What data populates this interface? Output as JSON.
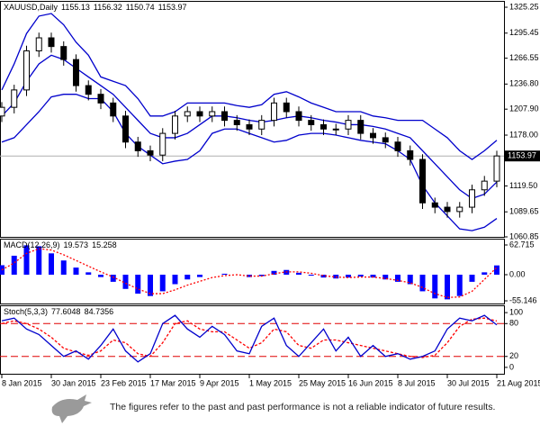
{
  "chart_data": [
    {
      "type": "candlestick",
      "title": "XAUUSD,Daily",
      "last_bar": [
        1155.13,
        1156.32,
        1150.74,
        1153.97
      ],
      "open": [
        1200,
        1210,
        1230,
        1275,
        1290,
        1280,
        1265,
        1235,
        1225,
        1215,
        1200,
        1170,
        1160,
        1155,
        1180,
        1200,
        1205,
        1200,
        1205,
        1195,
        1190,
        1185,
        1195,
        1215,
        1205,
        1195,
        1190,
        1185,
        1185,
        1195,
        1180,
        1175,
        1170,
        1160,
        1150,
        1100,
        1095,
        1090,
        1095,
        1115,
        1125
      ],
      "high": [
        1216,
        1236,
        1281,
        1296,
        1296,
        1286,
        1271,
        1241,
        1231,
        1221,
        1206,
        1176,
        1166,
        1186,
        1206,
        1211,
        1211,
        1211,
        1211,
        1201,
        1196,
        1201,
        1221,
        1221,
        1211,
        1201,
        1196,
        1191,
        1201,
        1201,
        1186,
        1181,
        1176,
        1166,
        1156,
        1106,
        1101,
        1101,
        1121,
        1131,
        1160
      ],
      "low": [
        1193,
        1203,
        1223,
        1268,
        1273,
        1258,
        1228,
        1218,
        1208,
        1193,
        1163,
        1153,
        1148,
        1148,
        1173,
        1193,
        1193,
        1193,
        1188,
        1183,
        1178,
        1178,
        1188,
        1198,
        1188,
        1183,
        1178,
        1178,
        1178,
        1173,
        1168,
        1163,
        1153,
        1143,
        1093,
        1088,
        1083,
        1083,
        1088,
        1108,
        1118
      ],
      "close": [
        1210,
        1230,
        1275,
        1290,
        1280,
        1265,
        1235,
        1225,
        1215,
        1200,
        1170,
        1160,
        1155,
        1180,
        1200,
        1205,
        1200,
        1205,
        1195,
        1190,
        1185,
        1195,
        1215,
        1205,
        1195,
        1190,
        1185,
        1185,
        1195,
        1180,
        1175,
        1170,
        1160,
        1150,
        1100,
        1095,
        1090,
        1095,
        1115,
        1125,
        1154
      ],
      "upper": [
        1230,
        1260,
        1295,
        1315,
        1318,
        1305,
        1285,
        1270,
        1245,
        1240,
        1235,
        1220,
        1200,
        1200,
        1205,
        1215,
        1215,
        1215,
        1215,
        1212,
        1210,
        1213,
        1225,
        1228,
        1222,
        1215,
        1210,
        1205,
        1205,
        1205,
        1200,
        1198,
        1195,
        1195,
        1195,
        1185,
        1175,
        1160,
        1150,
        1160,
        1172
      ],
      "middle": [
        1200,
        1215,
        1240,
        1260,
        1270,
        1265,
        1255,
        1245,
        1235,
        1225,
        1210,
        1195,
        1180,
        1175,
        1175,
        1180,
        1190,
        1200,
        1200,
        1198,
        1195,
        1193,
        1195,
        1198,
        1200,
        1198,
        1195,
        1193,
        1190,
        1190,
        1188,
        1185,
        1180,
        1175,
        1160,
        1145,
        1130,
        1115,
        1105,
        1110,
        1124
      ],
      "lower": [
        1170,
        1175,
        1190,
        1205,
        1222,
        1225,
        1225,
        1220,
        1220,
        1205,
        1180,
        1165,
        1155,
        1145,
        1148,
        1150,
        1160,
        1180,
        1185,
        1185,
        1180,
        1175,
        1170,
        1172,
        1178,
        1180,
        1180,
        1178,
        1175,
        1172,
        1170,
        1168,
        1160,
        1150,
        1120,
        1100,
        1085,
        1070,
        1068,
        1072,
        1082
      ],
      "band_color": "#0000cc",
      "ylim": [
        1059.8,
        1331.5
      ],
      "yticks": [
        1325.25,
        1295.45,
        1266.55,
        {
          "value": 1236.8,
          "label": "1236.80"
        },
        {
          "value": 1207.9,
          "label": "1207.90"
        },
        {
          "value": 1178,
          "label": "1178.00"
        },
        {
          "value": 1119.5,
          "label": "1119.50"
        },
        1089.65,
        1060.85
      ]
    },
    {
      "type": "macd",
      "title": "MACD(12,26,9)",
      "histogram": [
        20,
        40,
        62,
        60,
        45,
        30,
        15,
        5,
        -5,
        -15,
        -30,
        -40,
        -45,
        -35,
        -20,
        -10,
        -5,
        0,
        2,
        0,
        -5,
        -3,
        8,
        10,
        4,
        -2,
        -6,
        -8,
        -6,
        -4,
        -6,
        -10,
        -15,
        -20,
        -35,
        -50,
        -52,
        -45,
        -15,
        5,
        19.573
      ],
      "signal": [
        10,
        25,
        45,
        55,
        52,
        42,
        30,
        18,
        6,
        -5,
        -18,
        -30,
        -40,
        -40,
        -32,
        -22,
        -14,
        -6,
        -2,
        0,
        -3,
        -3,
        2,
        6,
        6,
        3,
        -2,
        -5,
        -6,
        -5,
        -5,
        -8,
        -12,
        -17,
        -27,
        -40,
        -48,
        -47,
        -35,
        -10,
        15.258
      ],
      "histogram_color": "#0000ff",
      "signal_color": "#ff0000",
      "ylim": [
        -62.7,
        74.1
      ],
      "yticks": [
        62.715,
        {
          "value": 0,
          "label": "0.00"
        },
        -55.146
      ]
    },
    {
      "type": "stochastic",
      "title": "Stoch(5,3,3)",
      "main": [
        85,
        90,
        70,
        60,
        40,
        20,
        30,
        15,
        40,
        70,
        30,
        10,
        25,
        80,
        95,
        70,
        55,
        75,
        60,
        30,
        25,
        75,
        90,
        40,
        20,
        45,
        70,
        30,
        55,
        20,
        40,
        20,
        25,
        15,
        20,
        30,
        70,
        90,
        85,
        95,
        77.6048
      ],
      "signal": [
        80,
        85,
        80,
        70,
        55,
        35,
        28,
        22,
        30,
        50,
        45,
        25,
        20,
        45,
        80,
        85,
        70,
        65,
        65,
        50,
        35,
        45,
        70,
        65,
        40,
        35,
        50,
        50,
        45,
        40,
        35,
        30,
        25,
        20,
        18,
        22,
        45,
        75,
        88,
        90,
        84.7356
      ],
      "main_color": "#0000cc",
      "signal_color": "#ff0000",
      "levels": [
        20,
        80
      ],
      "categories": [
        "8 Jan 2015",
        null,
        null,
        null,
        "30 Jan 2015",
        null,
        null,
        null,
        "23 Feb 2015",
        null,
        null,
        null,
        "17 Mar 2015",
        null,
        null,
        null,
        "9 Apr 2015",
        null,
        null,
        null,
        "1 May 2015",
        null,
        null,
        null,
        "25 May 2015",
        null,
        null,
        null,
        "16 Jun 2015",
        null,
        null,
        null,
        "8 Jul 2015",
        null,
        null,
        null,
        "30 Jul 2015",
        null,
        null,
        null,
        "21 Aug 2015"
      ],
      "ylim": [
        -13.3,
        111.7
      ],
      "yticks": [
        100,
        80,
        20,
        0
      ]
    }
  ],
  "disclaimer": "The figures refer to the past and past performance is not a reliable indicator of future results."
}
